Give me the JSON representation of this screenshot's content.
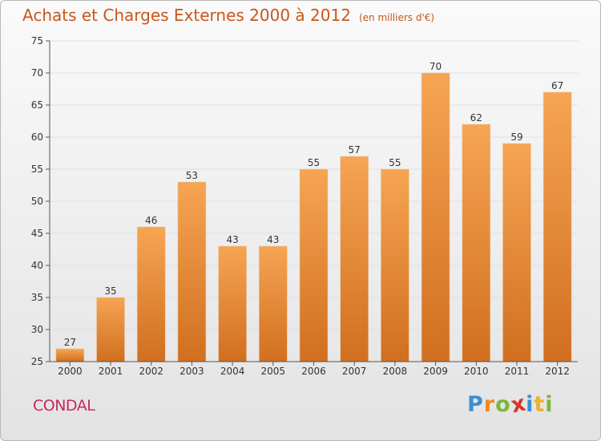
{
  "header": {
    "title": "Achats et Charges Externes 2000 à 2012",
    "subtitle": "(en milliers d'€)"
  },
  "footer": {
    "place": "CONDAL",
    "logo_letters": [
      "P",
      "r",
      "o",
      "x",
      "i",
      "t",
      "i"
    ],
    "logo_colors": [
      "#3a8fd4",
      "#f08a24",
      "#7cb83a",
      "#d9332b",
      "#3a8fd4",
      "#f0b02a",
      "#7cb83a"
    ]
  },
  "colors": {
    "bar_light": "#f6a553",
    "bar_dark": "#d06f1f",
    "axis": "#555555",
    "grid": "#e0e0e0"
  },
  "chart_data": {
    "type": "bar",
    "title": "Achats et Charges Externes 2000 à 2012",
    "subtitle": "(en milliers d'€)",
    "categories": [
      "2000",
      "2001",
      "2002",
      "2003",
      "2004",
      "2005",
      "2006",
      "2007",
      "2008",
      "2009",
      "2010",
      "2011",
      "2012"
    ],
    "values": [
      27,
      35,
      46,
      53,
      43,
      43,
      55,
      57,
      55,
      70,
      62,
      59,
      67
    ],
    "ylim": [
      25,
      75
    ],
    "yticks": [
      25,
      30,
      35,
      40,
      45,
      50,
      55,
      60,
      65,
      70,
      75
    ],
    "grid": true,
    "xlabel": "",
    "ylabel": ""
  }
}
